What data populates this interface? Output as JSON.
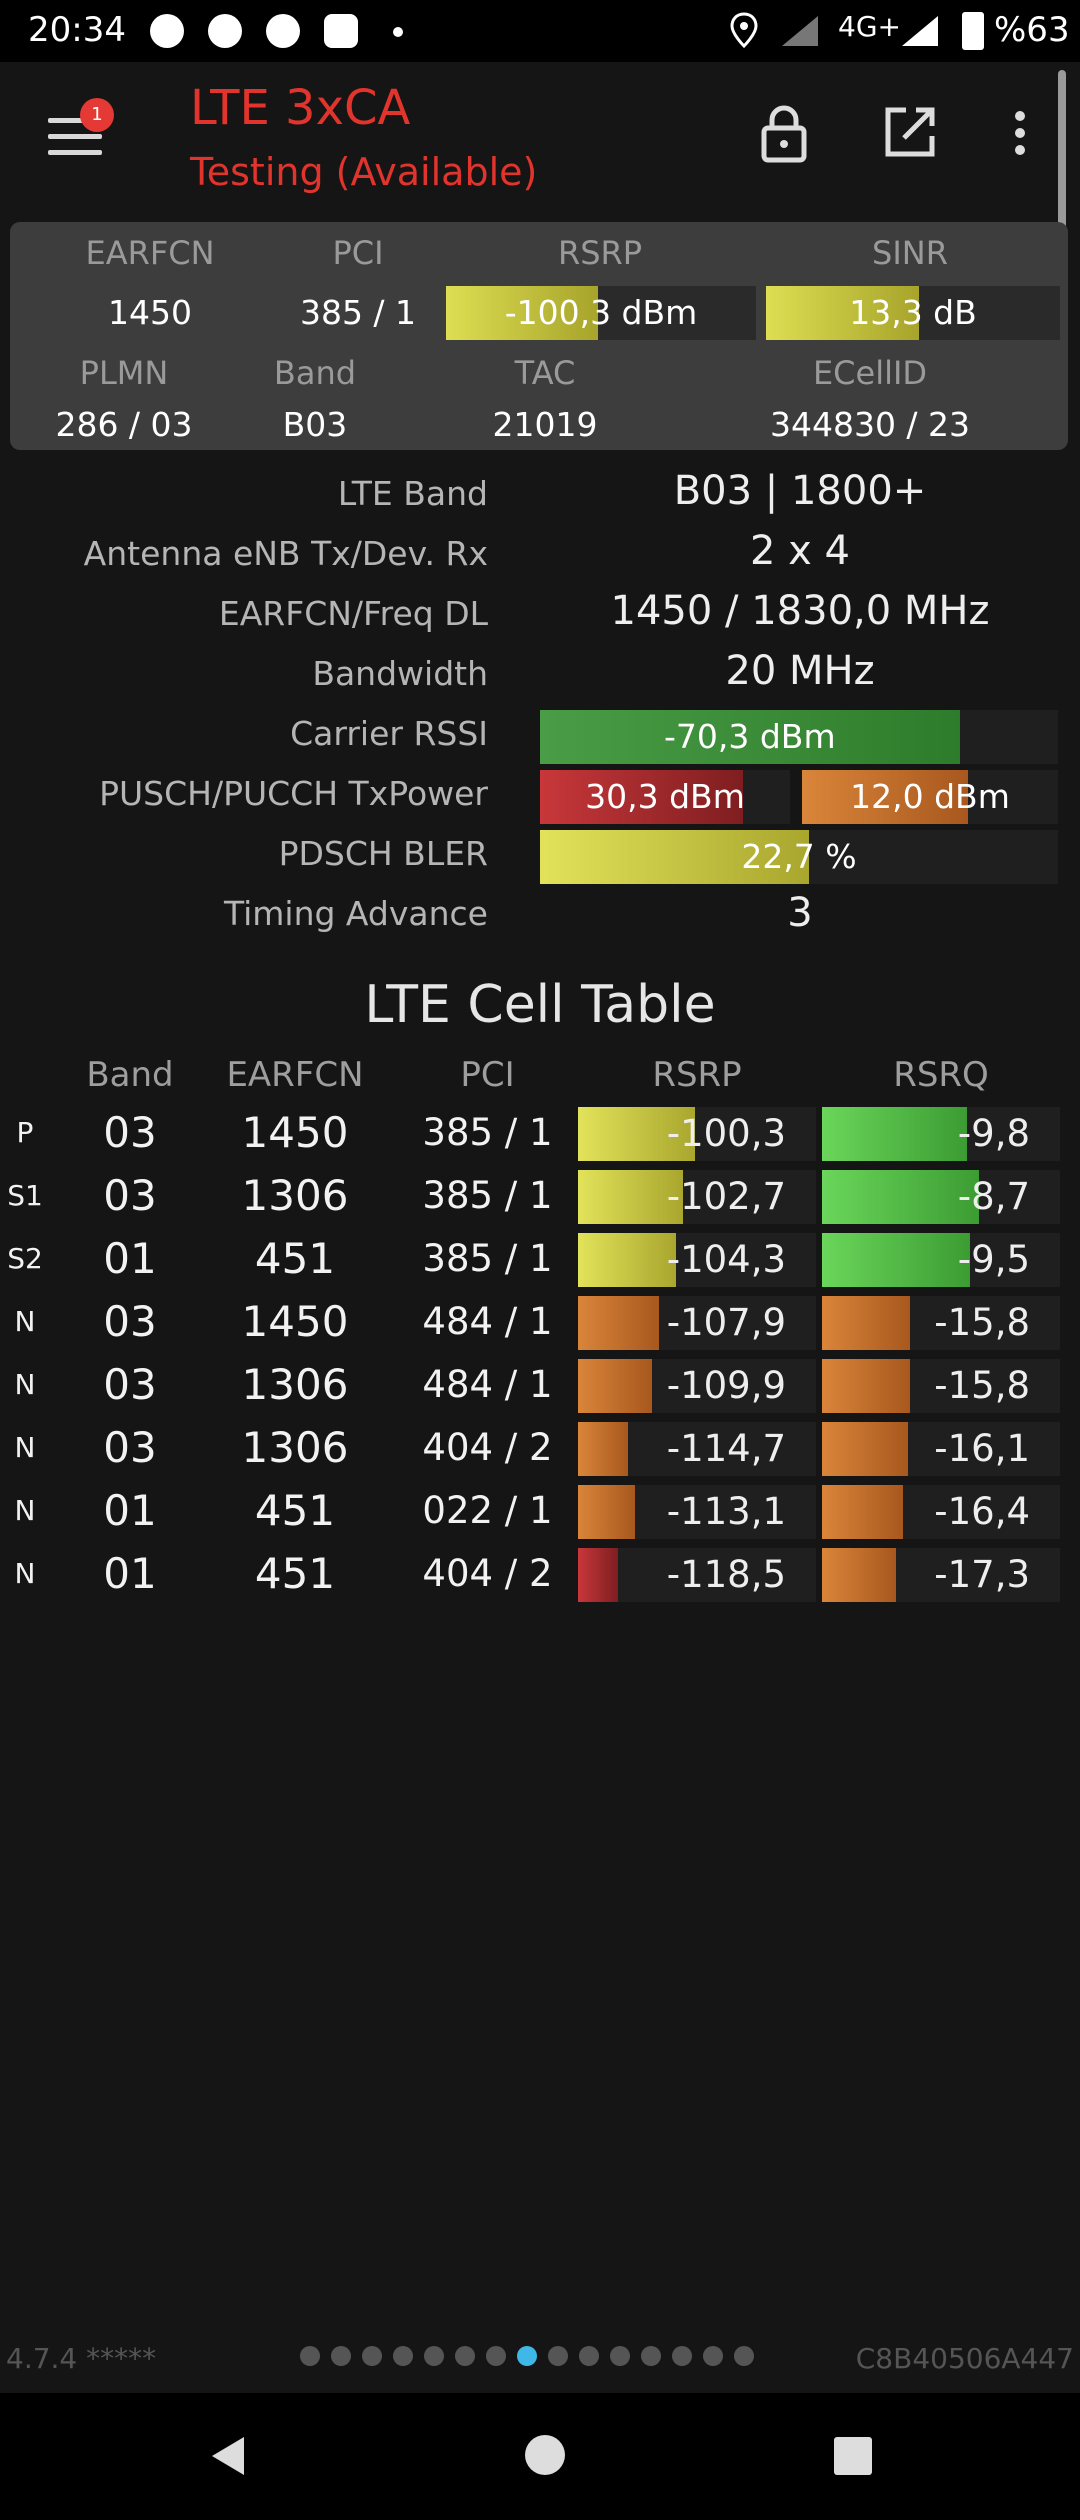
{
  "status": {
    "time": "20:34",
    "network": "4G+",
    "battery": "%63",
    "icons": [
      "telegram-icon",
      "whatsapp-icon",
      "telegram-icon",
      "chat-icon",
      "dot-icon",
      "location-icon",
      "signal-icon",
      "signal-icon",
      "battery-icon"
    ]
  },
  "appbar": {
    "title": "LTE 3xCA",
    "subtitle": "Testing (Available)",
    "badge": "1"
  },
  "panel": {
    "earfcn_label": "EARFCN",
    "earfcn": "1450",
    "pci_label": "PCI",
    "pci": "385 / 1",
    "rsrp_label": "RSRP",
    "rsrp": "-100,3 dBm",
    "rsrp_level": 0.49,
    "sinr_label": "SINR",
    "sinr": "13,3 dB",
    "sinr_level": 0.52,
    "plmn_label": "PLMN",
    "plmn": "286 / 03",
    "band_label": "Band",
    "band": "B03",
    "tac_label": "TAC",
    "tac": "21019",
    "ecellid_label": "ECellID",
    "ecellid": "344830 / 23"
  },
  "details": {
    "lte_band_label": "LTE Band",
    "lte_band": "B03 | 1800+",
    "antenna_label": "Antenna eNB Tx/Dev. Rx",
    "antenna": "2 x 4",
    "freq_label": "EARFCN/Freq DL",
    "freq": "1450 / 1830,0 MHz",
    "bandwidth_label": "Bandwidth",
    "bandwidth": "20 MHz",
    "rssi_label": "Carrier RSSI",
    "rssi": "-70,3 dBm",
    "rssi_level": 0.81,
    "txpower_label": "PUSCH/PUCCH TxPower",
    "pusch": "30,3 dBm",
    "pusch_level": 0.81,
    "pucch": "12,0 dBm",
    "pucch_level": 0.65,
    "bler_label": "PDSCH BLER",
    "bler": "22,7 %",
    "bler_level": 0.52,
    "timing_label": "Timing Advance",
    "timing": "3"
  },
  "cell_table": {
    "title": "LTE Cell Table",
    "headers": [
      "Band",
      "EARFCN",
      "PCI",
      "RSRP",
      "RSRQ"
    ],
    "rows": [
      {
        "type": "P",
        "band": "03",
        "earfcn": "1450",
        "pci": "385 / 1",
        "rsrp": "-100,3",
        "rsrp_level": 0.49,
        "rsrp_color": "yellow",
        "rsrq": "-9,8",
        "rsrq_level": 0.61,
        "rsrq_color": "green"
      },
      {
        "type": "S1",
        "band": "03",
        "earfcn": "1306",
        "pci": "385 / 1",
        "rsrp": "-102,7",
        "rsrp_level": 0.44,
        "rsrp_color": "yellow",
        "rsrq": "-8,7",
        "rsrq_level": 0.66,
        "rsrq_color": "green"
      },
      {
        "type": "S2",
        "band": "01",
        "earfcn": "451",
        "pci": "385 / 1",
        "rsrp": "-104,3",
        "rsrp_level": 0.41,
        "rsrp_color": "yellow",
        "rsrq": "-9,5",
        "rsrq_level": 0.62,
        "rsrq_color": "green"
      },
      {
        "type": "N",
        "band": "03",
        "earfcn": "1450",
        "pci": "484 / 1",
        "rsrp": "-107,9",
        "rsrp_level": 0.34,
        "rsrp_color": "orange",
        "rsrq": "-15,8",
        "rsrq_level": 0.37,
        "rsrq_color": "orange"
      },
      {
        "type": "N",
        "band": "03",
        "earfcn": "1306",
        "pci": "484 / 1",
        "rsrp": "-109,9",
        "rsrp_level": 0.31,
        "rsrp_color": "orange",
        "rsrq": "-15,8",
        "rsrq_level": 0.37,
        "rsrq_color": "orange"
      },
      {
        "type": "N",
        "band": "03",
        "earfcn": "1306",
        "pci": "404 / 2",
        "rsrp": "-114,7",
        "rsrp_level": 0.21,
        "rsrp_color": "orange",
        "rsrq": "-16,1",
        "rsrq_level": 0.36,
        "rsrq_color": "orange"
      },
      {
        "type": "N",
        "band": "01",
        "earfcn": "451",
        "pci": "022 / 1",
        "rsrp": "-113,1",
        "rsrp_level": 0.24,
        "rsrp_color": "orange",
        "rsrq": "-16,4",
        "rsrq_level": 0.34,
        "rsrq_color": "orange"
      },
      {
        "type": "N",
        "band": "01",
        "earfcn": "451",
        "pci": "404 / 2",
        "rsrp": "-118,5",
        "rsrp_level": 0.17,
        "rsrp_color": "red",
        "rsrq": "-17,3",
        "rsrq_level": 0.31,
        "rsrq_color": "orange"
      }
    ]
  },
  "footer": {
    "version": "4.7.4 *****",
    "device_id": "C8B40506A447",
    "page_count": 15,
    "active_page": 8
  },
  "colors": {
    "accent": "#e0342c",
    "active_dot": "#3fb8e8"
  }
}
